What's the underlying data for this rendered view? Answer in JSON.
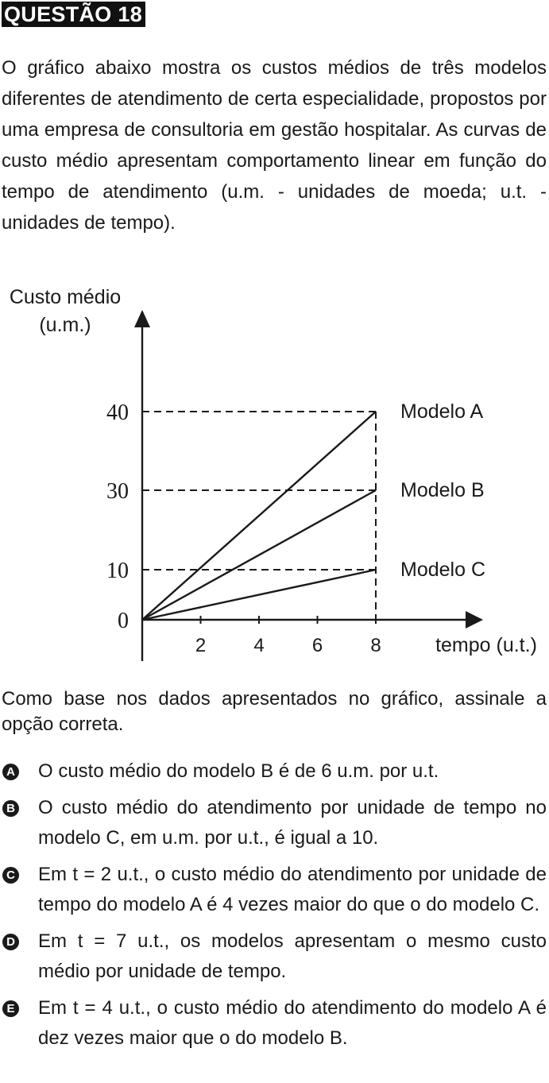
{
  "question": {
    "title": "QUESTÃO 18",
    "intro": "O gráfico abaixo mostra os custos médios de três modelos diferentes de atendimento de certa especialidade, propostos por uma empresa de consultoria em gestão hospitalar. As curvas de custo médio apresentam comportamento linear em função do tempo de atendimento (u.m. - unidades de moeda; u.t. - unidades de tempo).",
    "prompt": "Como base nos dados apresentados no gráfico, assinale a opção correta."
  },
  "chart_data": {
    "type": "line",
    "ylabel_line1": "Custo médio",
    "ylabel_line2": "(u.m.)",
    "xlabel": "tempo (u.t.)",
    "x_ticks": [
      2,
      4,
      6,
      8
    ],
    "y_ticks": [
      0,
      10,
      30,
      40
    ],
    "xlim": [
      0,
      9.2
    ],
    "ylim": [
      0,
      40
    ],
    "series": [
      {
        "name": "Modelo A",
        "x": [
          0,
          8
        ],
        "y": [
          0,
          40
        ]
      },
      {
        "name": "Modelo B",
        "x": [
          0,
          8
        ],
        "y": [
          0,
          30
        ]
      },
      {
        "name": "Modelo C",
        "x": [
          0,
          8
        ],
        "y": [
          0,
          10
        ]
      }
    ],
    "dashed_guides": true,
    "line_color": "#1a1a1a"
  },
  "options": [
    {
      "letter": "A",
      "text": "O custo médio do modelo B é de 6 u.m. por u.t."
    },
    {
      "letter": "B",
      "text": "O custo médio do atendimento por unidade de tempo no modelo C, em u.m. por u.t., é igual a 10."
    },
    {
      "letter": "C",
      "text": "Em t = 2 u.t., o custo médio do atendimento por unidade de tempo do modelo A é 4 vezes maior do que o do modelo C."
    },
    {
      "letter": "D",
      "text": "Em t = 7 u.t., os modelos apresentam o mesmo custo médio por unidade de tempo."
    },
    {
      "letter": "E",
      "text": "Em t = 4 u.t., o custo médio do atendimento do modelo A é dez vezes maior que o do modelo B."
    }
  ]
}
